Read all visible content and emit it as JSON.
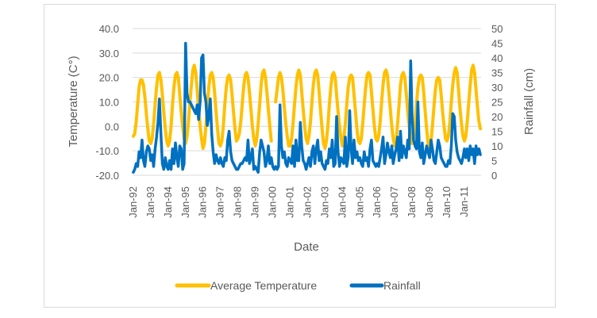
{
  "chart_data": {
    "type": "line",
    "title": "",
    "xlabel": "Date",
    "ylabel": "Temperature (C°)",
    "y2label": "Rainfall (cm)",
    "ylim": [
      -20,
      40
    ],
    "y2lim": [
      0,
      50
    ],
    "yticks": [
      "-20.0",
      "-10.0",
      "0.0",
      "10.0",
      "20.0",
      "30.0",
      "40.0"
    ],
    "y2ticks": [
      "0",
      "5",
      "10",
      "15",
      "20",
      "25",
      "30",
      "35",
      "40",
      "45",
      "50"
    ],
    "xticks": [
      "Jan-92",
      "Jan-93",
      "Jan-94",
      "Jan-95",
      "Jan-96",
      "Jan-97",
      "Jan-98",
      "Jan-99",
      "Jan-00",
      "Jan-01",
      "Jan-02",
      "Jan-03",
      "Jan-04",
      "Jan-05",
      "Jan-06",
      "Jan-07",
      "Jan-08",
      "Jan-09",
      "Jan-10",
      "Jan-11"
    ],
    "grid": true,
    "legend_position": "bottom",
    "years": [
      1992,
      1993,
      1994,
      1995,
      1996,
      1997,
      1998,
      1999,
      2000,
      2001,
      2002,
      2003,
      2004,
      2005,
      2006,
      2007,
      2008,
      2009,
      2010,
      2011
    ],
    "series": [
      {
        "name": "Average Temperature",
        "axis": "left",
        "color": "#FFC000",
        "monthly_by_year": [
          [
            -4,
            -3,
            2,
            9,
            16,
            19,
            19,
            17,
            12,
            5,
            -1,
            -6
          ],
          [
            -7,
            -5,
            1,
            9,
            16,
            21,
            22,
            19,
            13,
            6,
            -1,
            -6
          ],
          [
            -8,
            -6,
            0,
            9,
            16,
            21,
            22,
            20,
            13,
            6,
            0,
            -5
          ],
          [
            -7,
            -4,
            2,
            10,
            17,
            23,
            25,
            22,
            15,
            7,
            0,
            -5
          ],
          [
            -9,
            -7,
            0,
            8,
            16,
            21,
            22,
            20,
            14,
            6,
            -1,
            -7
          ],
          [
            -8,
            -6,
            0,
            9,
            16,
            20,
            21,
            19,
            13,
            6,
            -1,
            -6
          ],
          [
            -5,
            -3,
            2,
            9,
            16,
            21,
            22,
            20,
            14,
            7,
            0,
            -5
          ],
          [
            -8,
            -5,
            1,
            9,
            17,
            22,
            23,
            20,
            14,
            7,
            0,
            -6
          ],
          [
            null,
            null,
            10,
            15,
            20,
            22,
            20,
            15,
            8,
            1,
            -4,
            -8
          ],
          [
            -8,
            -5,
            1,
            9,
            16,
            21,
            23,
            21,
            14,
            7,
            0,
            -5
          ],
          [
            -7,
            -4,
            2,
            10,
            17,
            22,
            23,
            21,
            14,
            6,
            -1,
            -7
          ],
          [
            -9,
            -6,
            0,
            9,
            16,
            21,
            22,
            20,
            13,
            6,
            0,
            -5
          ],
          [
            -8,
            -5,
            1,
            9,
            16,
            20,
            21,
            20,
            13,
            6,
            -1,
            -6
          ],
          [
            -7,
            -5,
            1,
            9,
            16,
            21,
            22,
            21,
            14,
            7,
            0,
            -5
          ],
          [
            -6,
            -4,
            2,
            10,
            17,
            22,
            23,
            21,
            14,
            7,
            0,
            -5
          ],
          [
            -8,
            -6,
            1,
            9,
            17,
            21,
            22,
            20,
            13,
            6,
            0,
            -5
          ],
          [
            -7,
            -5,
            1,
            9,
            16,
            20,
            21,
            20,
            14,
            6,
            -1,
            -7
          ],
          [
            -9,
            -6,
            0,
            8,
            15,
            19,
            20,
            19,
            13,
            6,
            0,
            -5
          ],
          [
            -6,
            -4,
            2,
            10,
            17,
            22,
            24,
            22,
            15,
            7,
            1,
            -4
          ],
          [
            -6,
            -4,
            2,
            10,
            17,
            23,
            25,
            22,
            15,
            8,
            2,
            -1
          ]
        ]
      },
      {
        "name": "Rainfall",
        "axis": "right",
        "color": "#0070C0",
        "monthly_by_year": [
          [
            1,
            2,
            4,
            3,
            8,
            6,
            12,
            5,
            3,
            8,
            10,
            9
          ],
          [
            5,
            7,
            3,
            9,
            13,
            18,
            26,
            14,
            4,
            2,
            6,
            3
          ],
          [
            2,
            5,
            2,
            9,
            4,
            11,
            6,
            3,
            10,
            9,
            2,
            4
          ],
          [
            45,
            28,
            25,
            25,
            24,
            23,
            22,
            21,
            24,
            19,
            25,
            40
          ],
          [
            41,
            28,
            25,
            17,
            20,
            26,
            14,
            8,
            4,
            7,
            5,
            4
          ],
          [
            6,
            4,
            3,
            6,
            5,
            12,
            15,
            8,
            5,
            4,
            3,
            2
          ],
          [
            2,
            3,
            4,
            4,
            5,
            6,
            5,
            12,
            4,
            6,
            9,
            2
          ],
          [
            3,
            2,
            1,
            8,
            12,
            10,
            8,
            3,
            5,
            10,
            4,
            6
          ],
          [
            3,
            2,
            3,
            2,
            3,
            24,
            10,
            6,
            8,
            4,
            3,
            6
          ],
          [
            5,
            4,
            10,
            3,
            12,
            5,
            5,
            18,
            10,
            5,
            4,
            2
          ],
          [
            4,
            6,
            3,
            8,
            10,
            4,
            9,
            12,
            5,
            8,
            4,
            3
          ],
          [
            2,
            5,
            4,
            9,
            6,
            12,
            3,
            4,
            20,
            8,
            3,
            6
          ],
          [
            5,
            4,
            13,
            3,
            6,
            22,
            9,
            4,
            12,
            6,
            8,
            5
          ],
          [
            6,
            4,
            3,
            8,
            5,
            6,
            3,
            9,
            12,
            5,
            4,
            3
          ],
          [
            4,
            3,
            6,
            9,
            13,
            4,
            7,
            11,
            8,
            6,
            10,
            4
          ],
          [
            7,
            9,
            13,
            5,
            15,
            6,
            10,
            8,
            6,
            12,
            9,
            39
          ],
          [
            20,
            12,
            10,
            9,
            25,
            8,
            6,
            11,
            4,
            7,
            10,
            8
          ],
          [
            6,
            12,
            9,
            5,
            4,
            8,
            12,
            10,
            6,
            5,
            4,
            3
          ],
          [
            3,
            5,
            4,
            10,
            21,
            20,
            12,
            8,
            6,
            5,
            4,
            6
          ],
          [
            9,
            6,
            9,
            5,
            10,
            7,
            9,
            4,
            10,
            7,
            9,
            7
          ]
        ]
      }
    ]
  }
}
